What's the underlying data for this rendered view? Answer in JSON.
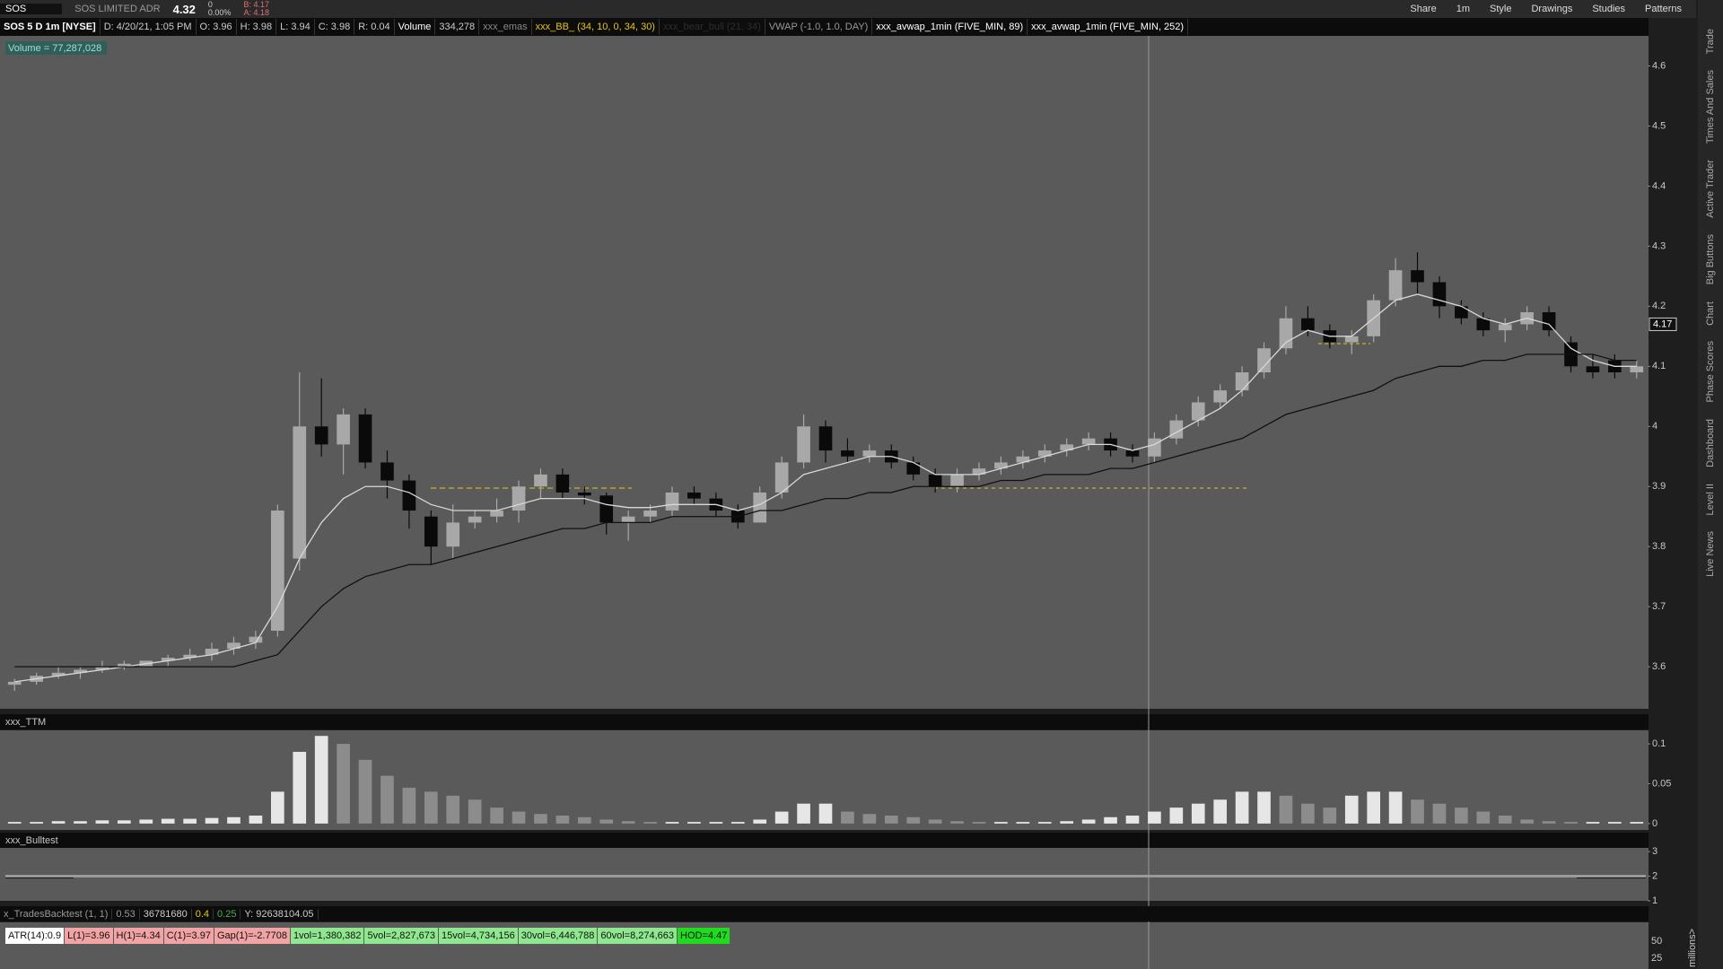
{
  "toolbar": {
    "symbol": "SOS",
    "description": "SOS LIMITED ADR",
    "last": "4.32",
    "change": "0",
    "change_pct": "0.00%",
    "bid": "B: 4.17",
    "ask": "A: 4.18",
    "buttons": [
      "Share",
      "1m",
      "Style",
      "Drawings",
      "Studies",
      "Patterns"
    ]
  },
  "header": {
    "title": "SOS 5 D 1m [NYSE]",
    "items": [
      "D: 4/20/21, 1:05 PM",
      "O: 3.96",
      "H: 3.98",
      "L: 3.94",
      "C: 3.98",
      "R: 0.04"
    ],
    "volume": "Volume",
    "volume_value": "334,278",
    "studies": [
      "xxx_emas",
      "xxx_BB_ (34, 10, 0, 34, 30)",
      "xxx_bear_bull (21, 34)",
      "VWAP (-1.0, 1.0, DAY)",
      "xxx_avwap_1min (FIVE_MIN, 89)",
      "xxx_avwap_1min (FIVE_MIN, 252)"
    ]
  },
  "volume_bubble": "Volume = 77,287,028",
  "sidebar_tabs": [
    "Trade",
    "Times And Sales",
    "Active Trader",
    "Big Buttons",
    "Chart",
    "Phase Scores",
    "Dashboard",
    "Level II",
    "Live News"
  ],
  "chart_data": [
    {
      "type": "candlestick",
      "ylim": [
        3.53,
        4.65
      ],
      "yticks": [
        3.6,
        3.7,
        3.8,
        3.9,
        4,
        4.1,
        4.2,
        4.3,
        4.4,
        4.5,
        4.6
      ],
      "last_price": 4.17,
      "open": [
        3.57,
        3.575,
        3.585,
        3.59,
        3.595,
        3.6,
        3.6,
        3.61,
        3.615,
        3.62,
        3.63,
        3.64,
        3.66,
        3.78,
        4.0,
        3.97,
        4.02,
        3.94,
        3.91,
        3.85,
        3.8,
        3.84,
        3.85,
        3.86,
        3.9,
        3.92,
        3.89,
        3.885,
        3.84,
        3.85,
        3.86,
        3.89,
        3.88,
        3.86,
        3.84,
        3.89,
        3.94,
        4.0,
        3.96,
        3.95,
        3.96,
        3.94,
        3.92,
        3.9,
        3.92,
        3.93,
        3.94,
        3.95,
        3.96,
        3.97,
        3.98,
        3.96,
        3.95,
        3.98,
        4.01,
        4.04,
        4.06,
        4.09,
        4.13,
        4.18,
        4.16,
        4.14,
        4.15,
        4.21,
        4.26,
        4.24,
        4.2,
        4.18,
        4.16,
        4.17,
        4.19,
        4.14,
        4.1,
        4.11,
        4.09
      ],
      "high": [
        3.58,
        3.59,
        3.6,
        3.6,
        3.61,
        3.61,
        3.61,
        3.62,
        3.63,
        3.64,
        3.65,
        3.66,
        3.87,
        4.09,
        4.08,
        4.03,
        4.03,
        3.96,
        3.92,
        3.86,
        3.87,
        3.86,
        3.88,
        3.91,
        3.93,
        3.93,
        3.9,
        3.89,
        3.86,
        3.87,
        3.9,
        3.9,
        3.89,
        3.87,
        3.9,
        3.95,
        4.02,
        4.01,
        3.98,
        3.97,
        3.97,
        3.95,
        3.93,
        3.93,
        3.94,
        3.95,
        3.96,
        3.97,
        3.98,
        3.99,
        3.99,
        3.97,
        3.99,
        4.02,
        4.05,
        4.07,
        4.1,
        4.14,
        4.2,
        4.2,
        4.17,
        4.16,
        4.22,
        4.28,
        4.29,
        4.25,
        4.21,
        4.19,
        4.18,
        4.2,
        4.2,
        4.15,
        4.12,
        4.12,
        4.11
      ],
      "low": [
        3.56,
        3.57,
        3.58,
        3.58,
        3.59,
        3.595,
        3.6,
        3.6,
        3.61,
        3.61,
        3.62,
        3.63,
        3.65,
        3.76,
        3.95,
        3.92,
        3.93,
        3.88,
        3.83,
        3.77,
        3.78,
        3.83,
        3.84,
        3.84,
        3.88,
        3.88,
        3.87,
        3.82,
        3.81,
        3.84,
        3.85,
        3.87,
        3.85,
        3.83,
        3.84,
        3.88,
        3.93,
        3.94,
        3.94,
        3.94,
        3.93,
        3.91,
        3.89,
        3.89,
        3.91,
        3.92,
        3.93,
        3.94,
        3.95,
        3.96,
        3.95,
        3.94,
        3.94,
        3.97,
        4.0,
        4.03,
        4.05,
        4.08,
        4.12,
        4.15,
        4.13,
        4.12,
        4.14,
        4.2,
        4.22,
        4.18,
        4.17,
        4.15,
        4.14,
        4.16,
        4.15,
        4.09,
        4.08,
        4.08,
        4.08
      ],
      "close": [
        3.575,
        3.585,
        3.59,
        3.595,
        3.6,
        3.605,
        3.61,
        3.615,
        3.62,
        3.63,
        3.64,
        3.65,
        3.86,
        4.0,
        3.97,
        4.02,
        3.94,
        3.91,
        3.86,
        3.8,
        3.84,
        3.85,
        3.86,
        3.9,
        3.92,
        3.89,
        3.885,
        3.84,
        3.85,
        3.86,
        3.89,
        3.88,
        3.86,
        3.84,
        3.89,
        3.94,
        4.0,
        3.96,
        3.95,
        3.96,
        3.94,
        3.92,
        3.9,
        3.92,
        3.93,
        3.94,
        3.95,
        3.96,
        3.97,
        3.98,
        3.96,
        3.95,
        3.98,
        4.01,
        4.04,
        4.06,
        4.09,
        4.13,
        4.18,
        4.16,
        4.14,
        4.15,
        4.21,
        4.26,
        4.24,
        4.2,
        4.18,
        4.16,
        4.17,
        4.19,
        4.16,
        4.1,
        4.09,
        4.09,
        4.1
      ],
      "lines": [
        {
          "color": "#d8d8d8",
          "values": [
            3.575,
            3.58,
            3.585,
            3.59,
            3.595,
            3.6,
            3.605,
            3.61,
            3.615,
            3.62,
            3.63,
            3.64,
            3.7,
            3.78,
            3.84,
            3.88,
            3.9,
            3.9,
            3.89,
            3.87,
            3.86,
            3.86,
            3.86,
            3.87,
            3.88,
            3.88,
            3.88,
            3.87,
            3.865,
            3.865,
            3.87,
            3.87,
            3.87,
            3.86,
            3.87,
            3.89,
            3.92,
            3.93,
            3.94,
            3.95,
            3.95,
            3.94,
            3.92,
            3.92,
            3.92,
            3.93,
            3.94,
            3.95,
            3.96,
            3.97,
            3.97,
            3.96,
            3.97,
            3.99,
            4.01,
            4.03,
            4.06,
            4.1,
            4.14,
            4.16,
            4.15,
            4.15,
            4.18,
            4.21,
            4.22,
            4.21,
            4.2,
            4.18,
            4.17,
            4.18,
            4.17,
            4.13,
            4.11,
            4.1,
            4.1
          ]
        },
        {
          "color": "#111111",
          "values": [
            3.6,
            3.6,
            3.6,
            3.6,
            3.6,
            3.6,
            3.6,
            3.6,
            3.6,
            3.6,
            3.6,
            3.61,
            3.62,
            3.66,
            3.7,
            3.73,
            3.75,
            3.76,
            3.77,
            3.77,
            3.78,
            3.79,
            3.8,
            3.81,
            3.82,
            3.83,
            3.83,
            3.84,
            3.84,
            3.84,
            3.85,
            3.85,
            3.85,
            3.85,
            3.86,
            3.86,
            3.87,
            3.88,
            3.88,
            3.89,
            3.89,
            3.9,
            3.9,
            3.9,
            3.9,
            3.91,
            3.91,
            3.92,
            3.92,
            3.92,
            3.93,
            3.93,
            3.94,
            3.95,
            3.96,
            3.97,
            3.98,
            4.0,
            4.02,
            4.03,
            4.04,
            4.05,
            4.06,
            4.08,
            4.09,
            4.1,
            4.1,
            4.11,
            4.11,
            4.12,
            4.12,
            4.12,
            4.12,
            4.11,
            4.11
          ]
        }
      ]
    },
    {
      "type": "histogram",
      "title": "xxx_TTM",
      "ylim": [
        -0.008,
        0.117
      ],
      "yticks": [
        0.1,
        0.05,
        0
      ],
      "values": [
        0.002,
        0.002,
        0.003,
        0.003,
        0.004,
        0.004,
        0.005,
        0.006,
        0.006,
        0.007,
        0.008,
        0.01,
        0.04,
        0.09,
        0.11,
        0.1,
        0.08,
        0.06,
        0.045,
        0.04,
        0.035,
        0.03,
        0.02,
        0.015,
        0.012,
        0.01,
        0.008,
        0.005,
        0.003,
        0.002,
        0.002,
        0.002,
        0.002,
        0.002,
        0.005,
        0.015,
        0.025,
        0.025,
        0.015,
        0.012,
        0.01,
        0.008,
        0.005,
        0.003,
        0.002,
        0.002,
        0.002,
        0.002,
        0.003,
        0.005,
        0.008,
        0.01,
        0.015,
        0.02,
        0.025,
        0.03,
        0.04,
        0.04,
        0.035,
        0.025,
        0.02,
        0.035,
        0.04,
        0.04,
        0.03,
        0.025,
        0.02,
        0.015,
        0.01,
        0.005,
        0.003,
        0.002,
        0.002,
        0.002,
        0.002
      ]
    },
    {
      "type": "line",
      "title": "xxx_Bulltest",
      "ylim": [
        1,
        3.15
      ],
      "yticks": [
        3,
        2,
        1
      ],
      "values": [
        2,
        2
      ]
    }
  ],
  "backtest": {
    "title": "x_TradesBacktest (1, 1)",
    "items": [
      "0.53",
      "36781680",
      "0.4",
      "0.25",
      "Y: 92638104.05"
    ]
  },
  "labels": [
    "ATR(14):0.9",
    "L(1)=3.96",
    "H(1)=4.34",
    "C(1)=3.97",
    "Gap(1)=-2.7708",
    "1vol=1,380,382",
    "5vol=2,827,673",
    "15vol=4,734,156",
    "30vol=6,446,788",
    "60vol=8,274,663",
    "HOD=4.47"
  ],
  "volume_panel": {
    "ticks": [
      "50",
      "25"
    ],
    "unit": "millions>"
  }
}
